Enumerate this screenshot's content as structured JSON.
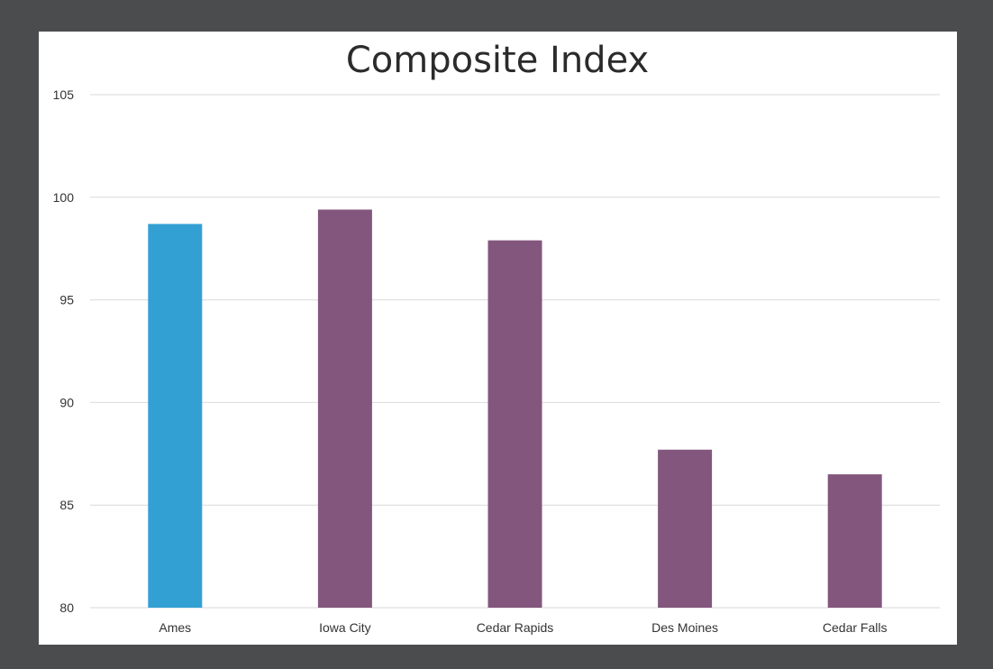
{
  "chart_data": {
    "type": "bar",
    "title": "Composite Index",
    "xlabel": "",
    "ylabel": "",
    "categories": [
      "Ames",
      "Iowa City",
      "Cedar Rapids",
      "Des Moines",
      "Cedar Falls"
    ],
    "values": [
      98.7,
      99.4,
      97.9,
      87.7,
      86.5
    ],
    "bar_colors": [
      "#33a0d3",
      "#83577d",
      "#83577d",
      "#83577d",
      "#83577d"
    ],
    "ylim": [
      80,
      105
    ],
    "yticks": [
      80,
      85,
      90,
      95,
      100,
      105
    ],
    "ytick_labels": [
      "80",
      "85",
      "90",
      "95",
      "100",
      "105"
    ],
    "grid": true,
    "legend": "none"
  },
  "colors": {
    "frame_background": "#4b4c4e",
    "plot_background": "#ffffff",
    "gridline": "#d9d9d9",
    "highlight_bar": "#33a0d3",
    "default_bar": "#83577d"
  }
}
